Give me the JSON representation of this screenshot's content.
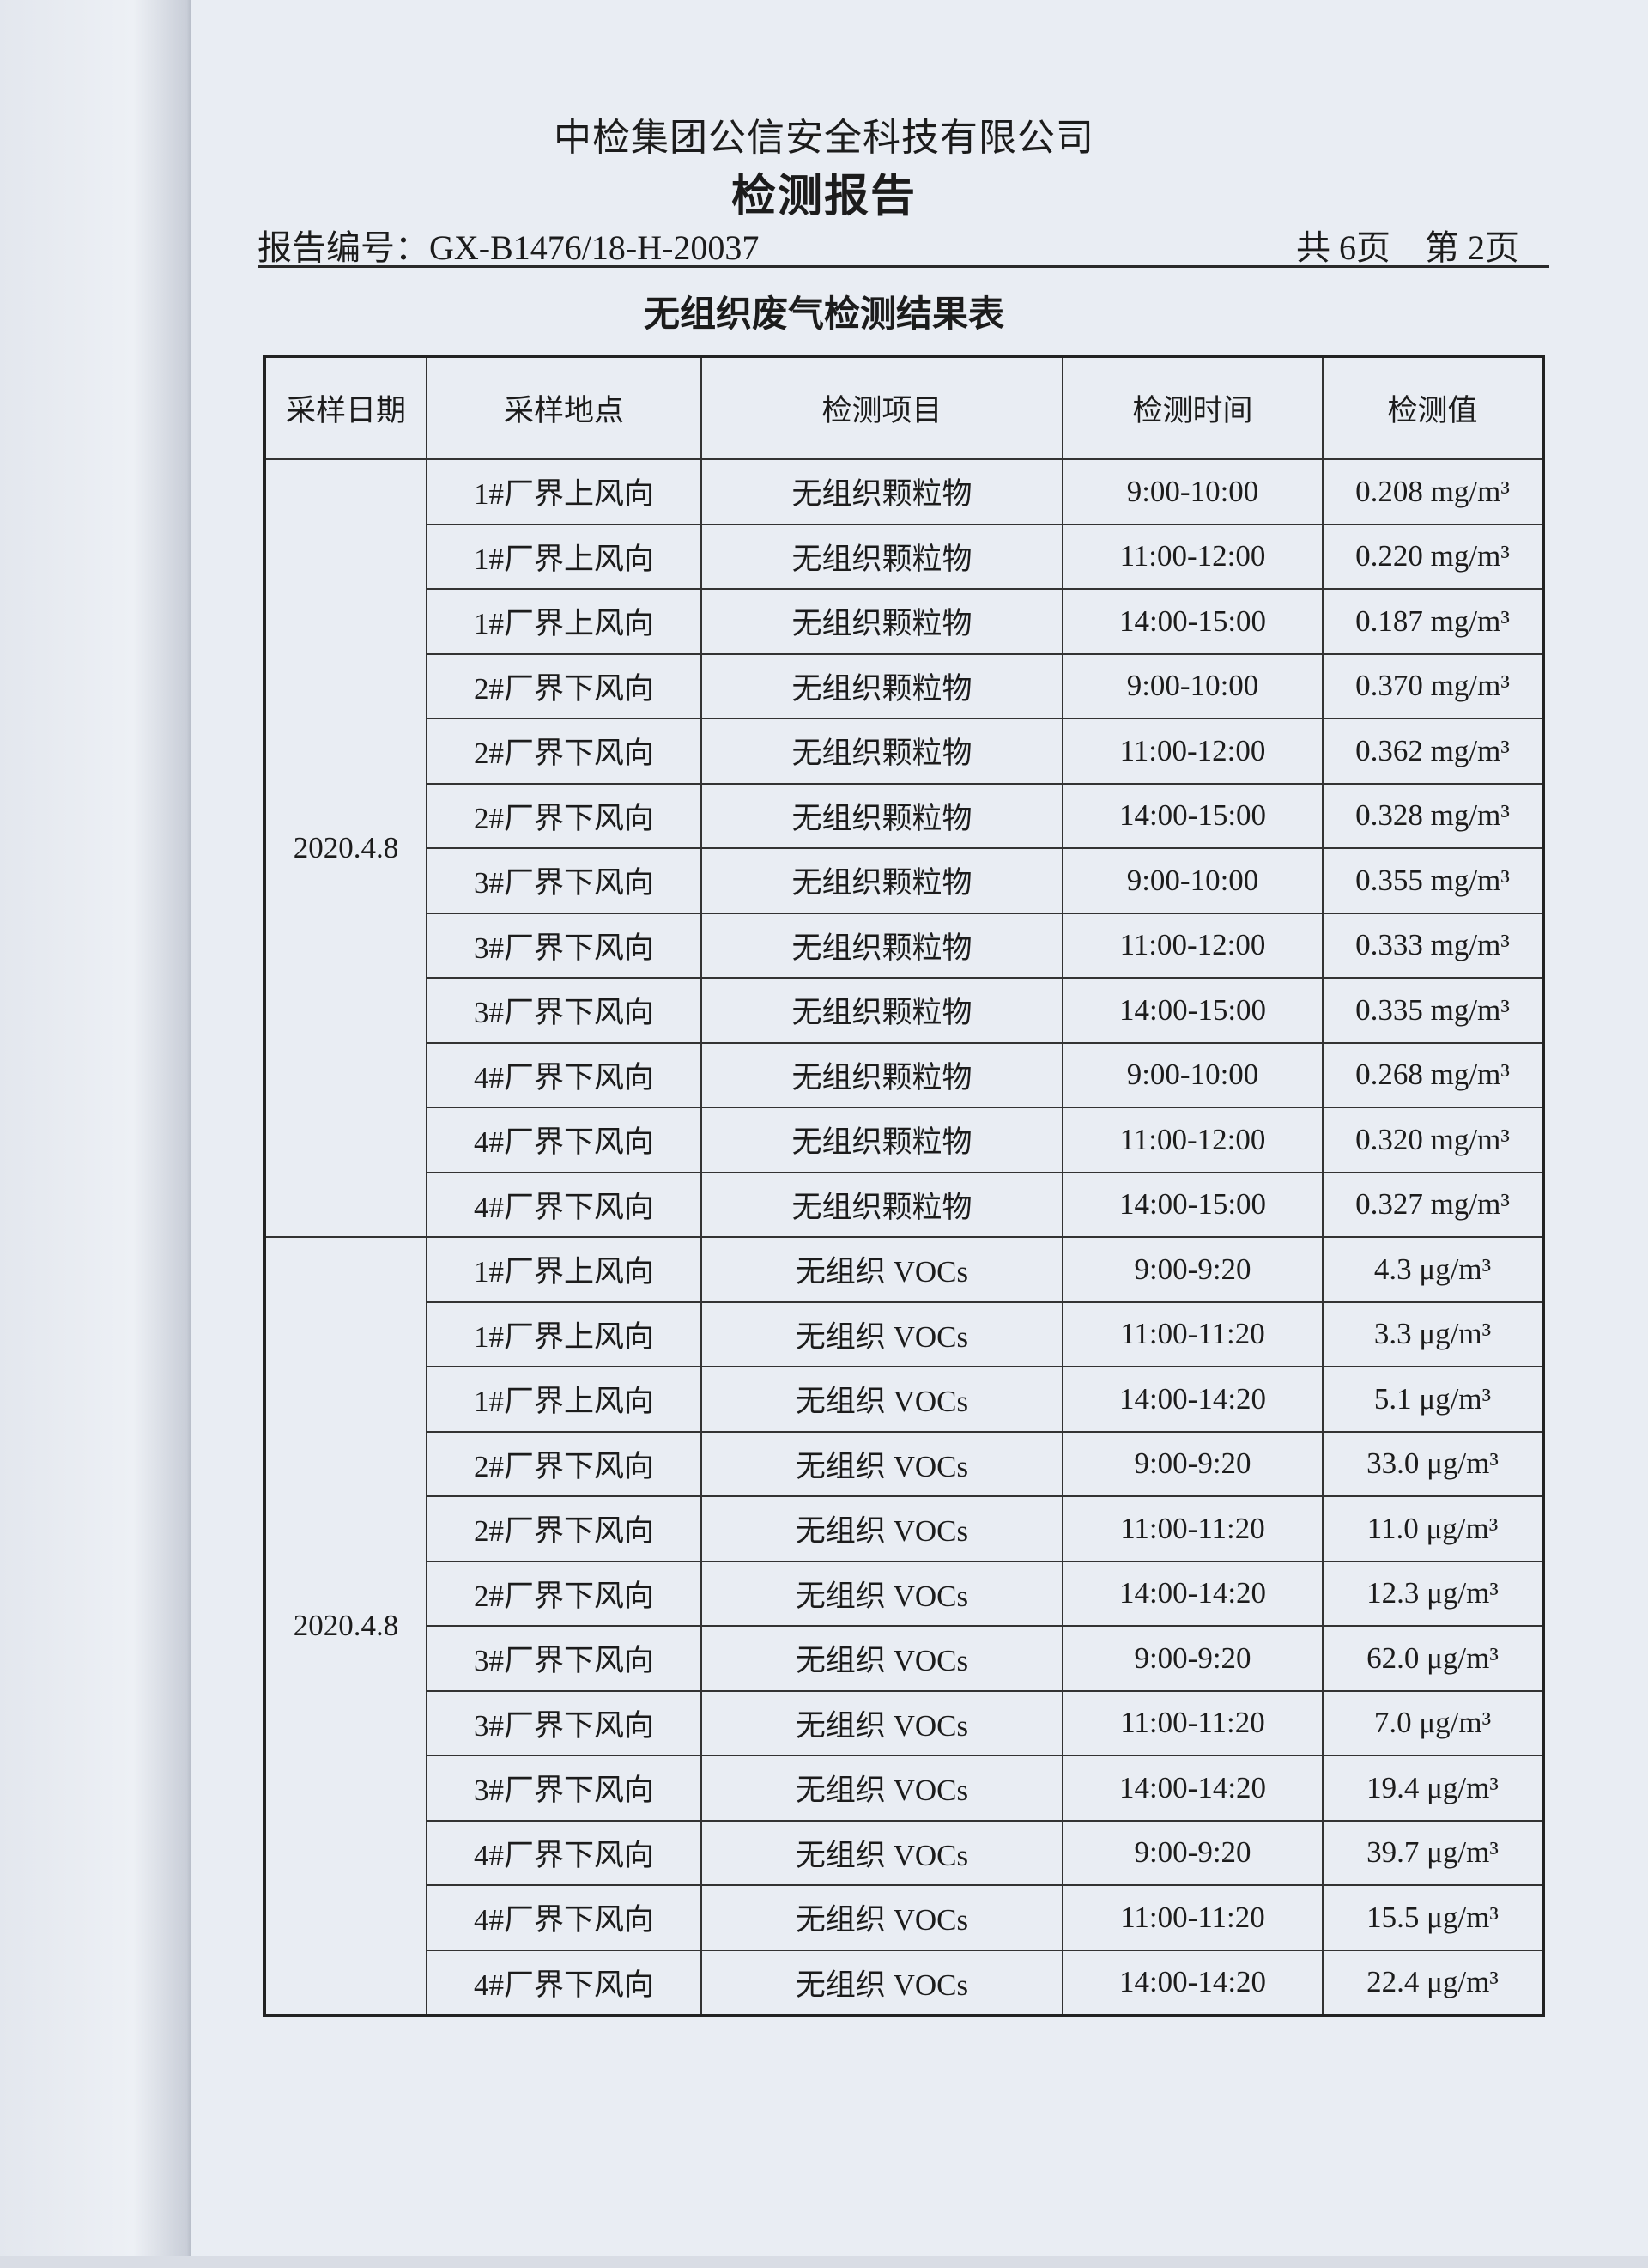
{
  "header": {
    "company": "中检集团公信安全科技有限公司",
    "title": "检测报告",
    "report_number": "报告编号：GX-B1476/18-H-20037",
    "pages": "共 6页　第 2页"
  },
  "table": {
    "title": "无组织废气检测结果表",
    "columns": [
      "采样日期",
      "采样地点",
      "检测项目",
      "检测时间",
      "检测值"
    ],
    "groups": [
      {
        "date": "2020.4.8",
        "rows": [
          [
            "1#厂界上风向",
            "无组织颗粒物",
            "9:00-10:00",
            "0.208 mg/m³"
          ],
          [
            "1#厂界上风向",
            "无组织颗粒物",
            "11:00-12:00",
            "0.220 mg/m³"
          ],
          [
            "1#厂界上风向",
            "无组织颗粒物",
            "14:00-15:00",
            "0.187 mg/m³"
          ],
          [
            "2#厂界下风向",
            "无组织颗粒物",
            "9:00-10:00",
            "0.370 mg/m³"
          ],
          [
            "2#厂界下风向",
            "无组织颗粒物",
            "11:00-12:00",
            "0.362 mg/m³"
          ],
          [
            "2#厂界下风向",
            "无组织颗粒物",
            "14:00-15:00",
            "0.328 mg/m³"
          ],
          [
            "3#厂界下风向",
            "无组织颗粒物",
            "9:00-10:00",
            "0.355 mg/m³"
          ],
          [
            "3#厂界下风向",
            "无组织颗粒物",
            "11:00-12:00",
            "0.333 mg/m³"
          ],
          [
            "3#厂界下风向",
            "无组织颗粒物",
            "14:00-15:00",
            "0.335 mg/m³"
          ],
          [
            "4#厂界下风向",
            "无组织颗粒物",
            "9:00-10:00",
            "0.268 mg/m³"
          ],
          [
            "4#厂界下风向",
            "无组织颗粒物",
            "11:00-12:00",
            "0.320 mg/m³"
          ],
          [
            "4#厂界下风向",
            "无组织颗粒物",
            "14:00-15:00",
            "0.327 mg/m³"
          ]
        ]
      },
      {
        "date": "2020.4.8",
        "rows": [
          [
            "1#厂界上风向",
            "无组织 VOCs",
            "9:00-9:20",
            "4.3 μg/m³"
          ],
          [
            "1#厂界上风向",
            "无组织 VOCs",
            "11:00-11:20",
            "3.3 μg/m³"
          ],
          [
            "1#厂界上风向",
            "无组织 VOCs",
            "14:00-14:20",
            "5.1 μg/m³"
          ],
          [
            "2#厂界下风向",
            "无组织 VOCs",
            "9:00-9:20",
            "33.0 μg/m³"
          ],
          [
            "2#厂界下风向",
            "无组织 VOCs",
            "11:00-11:20",
            "11.0 μg/m³"
          ],
          [
            "2#厂界下风向",
            "无组织 VOCs",
            "14:00-14:20",
            "12.3 μg/m³"
          ],
          [
            "3#厂界下风向",
            "无组织 VOCs",
            "9:00-9:20",
            "62.0 μg/m³"
          ],
          [
            "3#厂界下风向",
            "无组织 VOCs",
            "11:00-11:20",
            "7.0 μg/m³"
          ],
          [
            "3#厂界下风向",
            "无组织 VOCs",
            "14:00-14:20",
            "19.4 μg/m³"
          ],
          [
            "4#厂界下风向",
            "无组织 VOCs",
            "9:00-9:20",
            "39.7 μg/m³"
          ],
          [
            "4#厂界下风向",
            "无组织 VOCs",
            "11:00-11:20",
            "15.5 μg/m³"
          ],
          [
            "4#厂界下风向",
            "无组织 VOCs",
            "14:00-14:20",
            "22.4 μg/m³"
          ]
        ]
      }
    ]
  }
}
